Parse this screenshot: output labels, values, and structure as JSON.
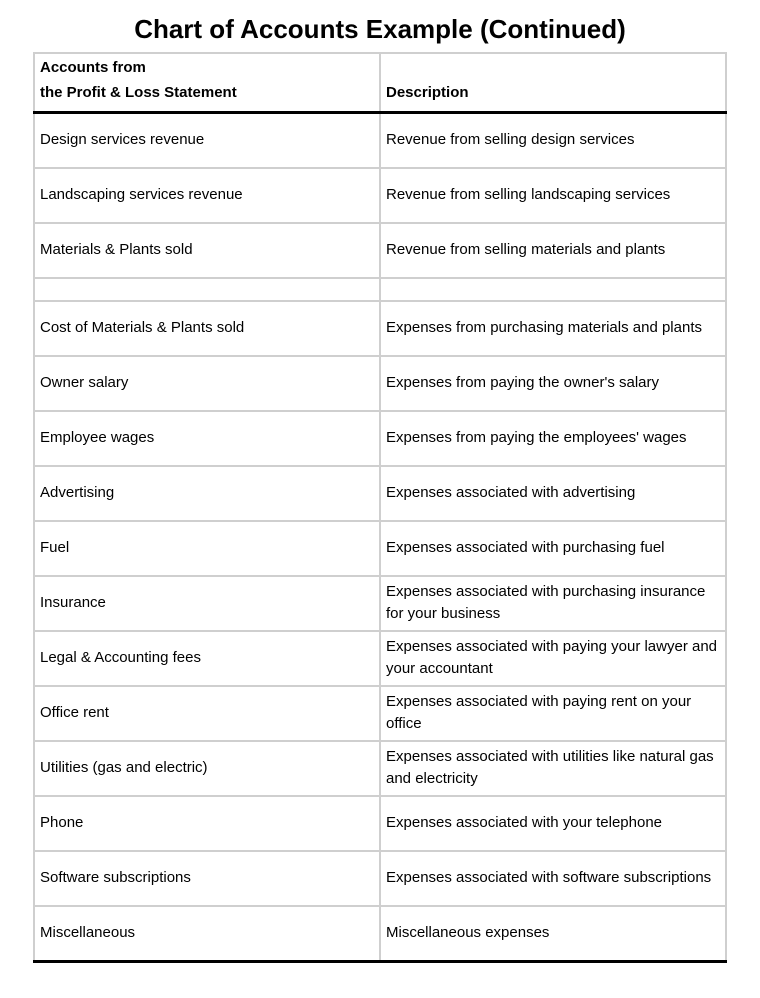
{
  "page": {
    "title": "Chart of Accounts Example (Continued)"
  },
  "table": {
    "header": {
      "account_line1": "Accounts from",
      "account_line2": "the Profit & Loss Statement",
      "description": "Description"
    },
    "rows": [
      {
        "account": "Design services revenue",
        "description": "Revenue from selling design services",
        "spacer": false
      },
      {
        "account": "Landscaping services revenue",
        "description": "Revenue from selling landscaping services",
        "spacer": false
      },
      {
        "account": "Materials & Plants sold",
        "description": "Revenue from selling materials and plants",
        "spacer": false
      },
      {
        "account": "",
        "description": "",
        "spacer": true
      },
      {
        "account": "Cost of Materials & Plants sold",
        "description": "Expenses from purchasing materials and plants",
        "spacer": false
      },
      {
        "account": "Owner salary",
        "description": "Expenses from paying the owner's salary",
        "spacer": false
      },
      {
        "account": "Employee wages",
        "description": "Expenses from paying the employees' wages",
        "spacer": false
      },
      {
        "account": "Advertising",
        "description": "Expenses associated with advertising",
        "spacer": false
      },
      {
        "account": "Fuel",
        "description": "Expenses associated with purchasing fuel",
        "spacer": false
      },
      {
        "account": "Insurance",
        "description": "Expenses associated with purchasing insurance for your business",
        "spacer": false
      },
      {
        "account": "Legal & Accounting fees",
        "description": "Expenses associated with paying your lawyer and your accountant",
        "spacer": false
      },
      {
        "account": "Office rent",
        "description": "Expenses associated with paying rent on your office",
        "spacer": false
      },
      {
        "account": "Utilities (gas and electric)",
        "description": "Expenses associated with utilities like natural gas and electricity",
        "spacer": false
      },
      {
        "account": "Phone",
        "description": "Expenses associated with your telephone",
        "spacer": false
      },
      {
        "account": "Software subscriptions",
        "description": "Expenses associated with software subscriptions",
        "spacer": false
      },
      {
        "account": "Miscellaneous",
        "description": "Miscellaneous expenses",
        "spacer": false
      }
    ],
    "colors": {
      "grid": "#cfcfcf",
      "heavy_rule": "#000000",
      "text": "#000000",
      "background": "#ffffff"
    }
  }
}
